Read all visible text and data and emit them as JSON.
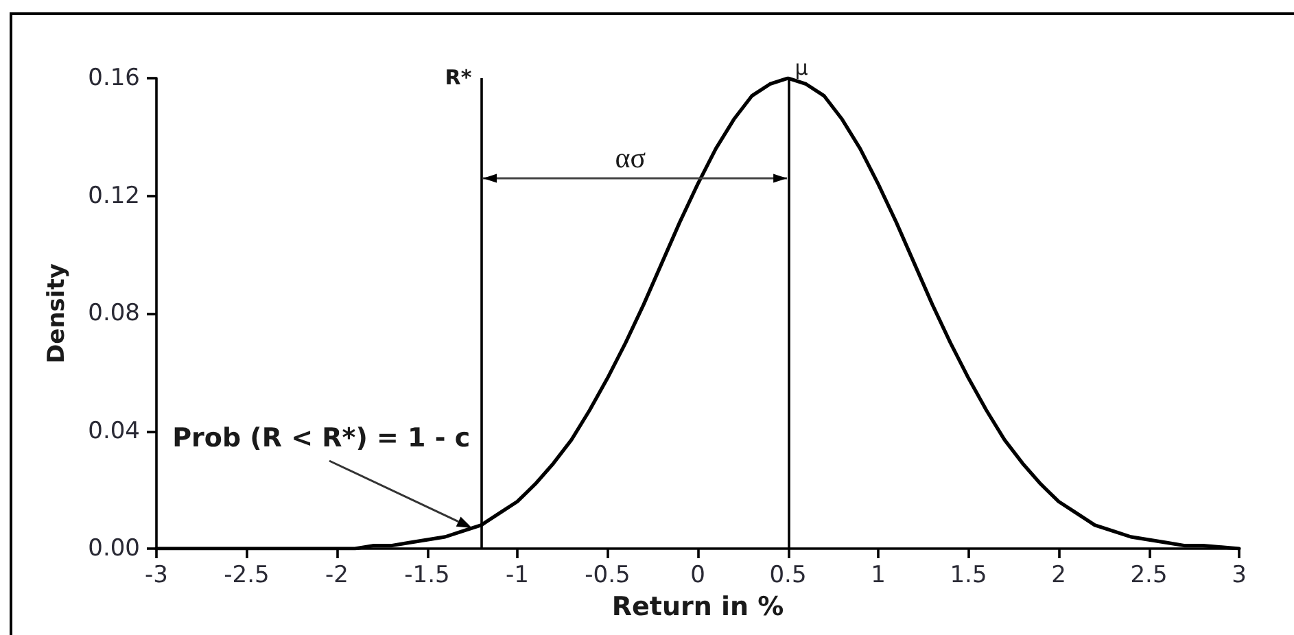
{
  "chart_data": {
    "type": "line",
    "xlabel": "Return in %",
    "ylabel": "Density",
    "x": [
      -3,
      -2.5,
      -2.2,
      -2,
      -1.9,
      -1.8,
      -1.7,
      -1.6,
      -1.5,
      -1.4,
      -1.3,
      -1.2,
      -1.1,
      -1,
      -0.9,
      -0.8,
      -0.7,
      -0.6,
      -0.5,
      -0.4,
      -0.3,
      -0.2,
      -0.1,
      0,
      0.1,
      0.2,
      0.3,
      0.4,
      0.5,
      0.6,
      0.7,
      0.8,
      0.9,
      1,
      1.1,
      1.2,
      1.3,
      1.4,
      1.5,
      1.6,
      1.7,
      1.8,
      1.9,
      2,
      2.1,
      2.2,
      2.3,
      2.4,
      2.5,
      2.6,
      2.7,
      2.8,
      3
    ],
    "series": [
      {
        "color": "#000000",
        "values": [
          0,
          0,
          0,
          0,
          0,
          0.001,
          0.001,
          0.002,
          0.003,
          0.004,
          0.006,
          0.008,
          0.012,
          0.016,
          0.022,
          0.029,
          0.037,
          0.047,
          0.058,
          0.07,
          0.083,
          0.097,
          0.111,
          0.124,
          0.136,
          0.146,
          0.154,
          0.158,
          0.16,
          0.158,
          0.154,
          0.146,
          0.136,
          0.124,
          0.111,
          0.097,
          0.083,
          0.07,
          0.058,
          0.047,
          0.037,
          0.029,
          0.022,
          0.016,
          0.012,
          0.008,
          0.006,
          0.004,
          0.003,
          0.002,
          0.001,
          0.001,
          0
        ]
      }
    ],
    "xlim": [
      -3,
      3
    ],
    "xticks": [
      -3,
      -2.5,
      -2,
      -1.5,
      -1,
      -0.5,
      0,
      0.5,
      1,
      1.5,
      2,
      2.5,
      3
    ],
    "ylim": [
      0,
      0.16
    ],
    "yticks": [
      {
        "value": 0,
        "label": "0.00"
      },
      0.04,
      0.08,
      0.12,
      0.16
    ],
    "ref_lines": [
      {
        "axis": "x",
        "value": -1.2,
        "label": "R*",
        "color": "#000000"
      },
      {
        "axis": "x",
        "value": 0.5,
        "label": "μ",
        "color": "#000000"
      }
    ],
    "annotations": [
      "ασ",
      {
        "text": "Prob (R < R*) = 1 - c",
        "x": -1.25,
        "y": 0.007
      }
    ],
    "marker": "none"
  }
}
